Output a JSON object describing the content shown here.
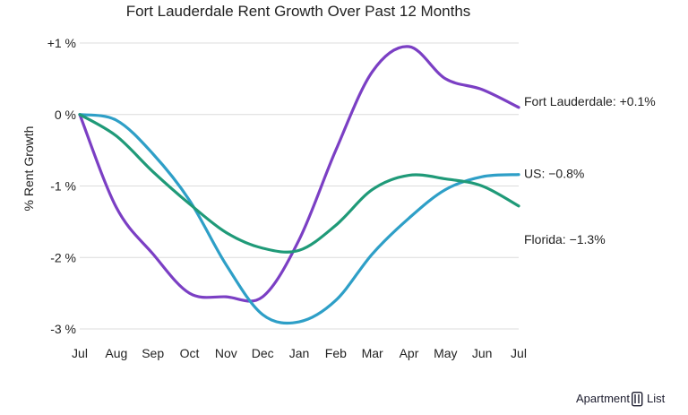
{
  "chart_data": {
    "type": "line",
    "title": "Fort Lauderdale Rent Growth Over Past 12 Months",
    "xlabel": "",
    "ylabel": "% Rent Growth",
    "categories": [
      "Jul",
      "Aug",
      "Sep",
      "Oct",
      "Nov",
      "Dec",
      "Jan",
      "Feb",
      "Mar",
      "Apr",
      "May",
      "Jun",
      "Jul"
    ],
    "ylim": [
      -3,
      1
    ],
    "yticks": [
      {
        "value": 1,
        "label": "+1 %"
      },
      {
        "value": 0,
        "label": "0 %"
      },
      {
        "value": -1,
        "label": "-1 %"
      },
      {
        "value": -2,
        "label": "-2 %"
      },
      {
        "value": -3,
        "label": "-3 %"
      }
    ],
    "grid": true,
    "series": [
      {
        "name": "Fort Lauderdale",
        "color": "#7b3fc4",
        "end_label": "Fort Lauderdale: +0.1%",
        "values": [
          0,
          -1.3,
          -1.95,
          -2.5,
          -2.55,
          -2.55,
          -1.75,
          -0.5,
          0.6,
          0.95,
          0.5,
          0.35,
          0.1
        ]
      },
      {
        "name": "US",
        "color": "#2e9fc7",
        "end_label": "US: −0.8%",
        "values": [
          0,
          -0.08,
          -0.55,
          -1.2,
          -2.1,
          -2.8,
          -2.9,
          -2.6,
          -1.95,
          -1.45,
          -1.05,
          -0.87,
          -0.84
        ]
      },
      {
        "name": "Florida",
        "color": "#1f9a78",
        "end_label": "Florida: −1.3%",
        "values": [
          0,
          -0.3,
          -0.8,
          -1.25,
          -1.65,
          -1.87,
          -1.9,
          -1.55,
          -1.05,
          -0.85,
          -0.9,
          -1.0,
          -1.28
        ]
      }
    ]
  },
  "branding": {
    "text": "Apartment",
    "suffix": "List"
  }
}
